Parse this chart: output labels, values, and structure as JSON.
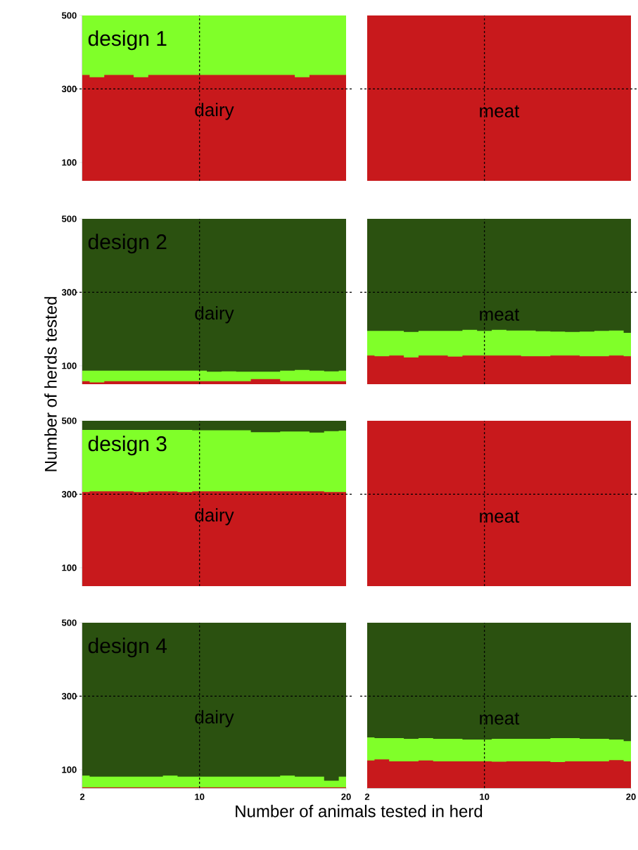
{
  "chart_data": [
    {
      "type": "area",
      "x": [
        2,
        3,
        4,
        5,
        6,
        7,
        8,
        9,
        10,
        11,
        12,
        13,
        14,
        15,
        16,
        17,
        18,
        19,
        20
      ],
      "xlim": [
        2,
        20
      ],
      "ylim": [
        50,
        500
      ],
      "xticks": [
        2,
        10,
        20
      ],
      "yticks": [
        100,
        300,
        500
      ],
      "tick_labels": "y",
      "annotations": [
        "design 1",
        "dairy"
      ],
      "ref_lines": [
        {
          "axis": "x",
          "value": 10,
          "color": "#000000",
          "line_style": "dashed"
        },
        {
          "axis": "y",
          "value": 300,
          "color": "#000000",
          "line_style": "dashed"
        }
      ],
      "bands": [
        {
          "axis": "y",
          "from": 50,
          "to": 500,
          "color": "#80ff29"
        }
      ],
      "series": [
        {
          "color": "#c8191c",
          "values": [
            338,
            332,
            338,
            338,
            332,
            338,
            338,
            338,
            338,
            338,
            338,
            338,
            338,
            338,
            338,
            332,
            338,
            338,
            338
          ]
        }
      ]
    },
    {
      "type": "area",
      "xlim": [
        2,
        20
      ],
      "ylim": [
        50,
        500
      ],
      "xticks": [
        2,
        10,
        20
      ],
      "yticks": [
        100,
        300,
        500
      ],
      "tick_labels": false,
      "annotations": [
        "meat"
      ],
      "ref_lines": [
        {
          "axis": "x",
          "value": 10,
          "color": "#000000",
          "line_style": "dashed"
        },
        {
          "axis": "y",
          "value": 300,
          "color": "#000000",
          "line_style": "dashed"
        }
      ],
      "bands": [
        {
          "axis": "y",
          "from": 50,
          "to": 500,
          "color": "#c8191c"
        }
      ]
    },
    {
      "type": "area",
      "x": [
        2,
        3,
        4,
        5,
        6,
        7,
        8,
        9,
        10,
        11,
        12,
        13,
        14,
        15,
        16,
        17,
        18,
        19,
        20
      ],
      "xlim": [
        2,
        20
      ],
      "ylim": [
        50,
        500
      ],
      "xticks": [
        2,
        10,
        20
      ],
      "yticks": [
        100,
        300,
        500
      ],
      "tick_labels": "y",
      "ylabel": "Number of herds tested",
      "annotations": [
        "design 2",
        "dairy"
      ],
      "ref_lines": [
        {
          "axis": "x",
          "value": 10,
          "color": "#000000",
          "line_style": "dashed"
        },
        {
          "axis": "y",
          "value": 300,
          "color": "#000000",
          "line_style": "dashed"
        }
      ],
      "bands": [
        {
          "axis": "y",
          "from": 50,
          "to": 500,
          "color": "#2b5110"
        }
      ],
      "series": [
        {
          "color": "#80ff29",
          "values": [
            87,
            87,
            87,
            87,
            87,
            87,
            87,
            87,
            87,
            84,
            85,
            84,
            84,
            84,
            87,
            89,
            87,
            85,
            87
          ]
        },
        {
          "color": "#c8191c",
          "values": [
            58,
            55,
            58,
            58,
            58,
            58,
            58,
            58,
            58,
            58,
            58,
            58,
            64,
            64,
            58,
            58,
            58,
            58,
            58
          ]
        }
      ]
    },
    {
      "type": "area",
      "x": [
        2,
        3,
        4,
        5,
        6,
        7,
        8,
        9,
        10,
        11,
        12,
        13,
        14,
        15,
        16,
        17,
        18,
        19,
        20
      ],
      "xlim": [
        2,
        20
      ],
      "ylim": [
        50,
        500
      ],
      "xticks": [
        2,
        10,
        20
      ],
      "yticks": [
        100,
        300,
        500
      ],
      "tick_labels": false,
      "annotations": [
        "meat"
      ],
      "ref_lines": [
        {
          "axis": "x",
          "value": 10,
          "color": "#000000",
          "line_style": "dashed"
        },
        {
          "axis": "y",
          "value": 300,
          "color": "#000000",
          "line_style": "dashed"
        }
      ],
      "bands": [
        {
          "axis": "y",
          "from": 50,
          "to": 500,
          "color": "#2b5110"
        }
      ],
      "series": [
        {
          "color": "#80ff29",
          "values": [
            195,
            195,
            195,
            192,
            195,
            195,
            195,
            198,
            195,
            198,
            196,
            196,
            194,
            193,
            192,
            193,
            195,
            196,
            190
          ]
        },
        {
          "color": "#c8191c",
          "values": [
            128,
            126,
            128,
            123,
            128,
            128,
            125,
            128,
            128,
            128,
            128,
            126,
            126,
            128,
            128,
            126,
            126,
            128,
            126
          ]
        }
      ]
    },
    {
      "type": "area",
      "x": [
        2,
        3,
        4,
        5,
        6,
        7,
        8,
        9,
        10,
        11,
        12,
        13,
        14,
        15,
        16,
        17,
        18,
        19,
        20
      ],
      "xlim": [
        2,
        20
      ],
      "ylim": [
        50,
        500
      ],
      "xticks": [
        2,
        10,
        20
      ],
      "yticks": [
        100,
        300,
        500
      ],
      "tick_labels": "y",
      "annotations": [
        "design 3",
        "dairy"
      ],
      "ref_lines": [
        {
          "axis": "x",
          "value": 10,
          "color": "#000000",
          "line_style": "dashed"
        },
        {
          "axis": "y",
          "value": 300,
          "color": "#000000",
          "line_style": "dashed"
        }
      ],
      "bands": [
        {
          "axis": "y",
          "from": 50,
          "to": 500,
          "color": "#2b5110"
        }
      ],
      "series": [
        {
          "color": "#80ff29",
          "values": [
            475,
            475,
            475,
            475,
            475,
            475,
            475,
            475,
            474,
            474,
            474,
            474,
            469,
            469,
            471,
            471,
            468,
            472,
            473
          ]
        },
        {
          "color": "#c8191c",
          "values": [
            306,
            308,
            308,
            308,
            306,
            308,
            308,
            306,
            308,
            308,
            308,
            308,
            308,
            308,
            308,
            308,
            308,
            306,
            306
          ]
        }
      ]
    },
    {
      "type": "area",
      "xlim": [
        2,
        20
      ],
      "ylim": [
        50,
        500
      ],
      "xticks": [
        2,
        10,
        20
      ],
      "yticks": [
        100,
        300,
        500
      ],
      "tick_labels": false,
      "annotations": [
        "meat"
      ],
      "ref_lines": [
        {
          "axis": "x",
          "value": 10,
          "color": "#000000",
          "line_style": "dashed"
        },
        {
          "axis": "y",
          "value": 300,
          "color": "#000000",
          "line_style": "dashed"
        }
      ],
      "bands": [
        {
          "axis": "y",
          "from": 50,
          "to": 500,
          "color": "#c8191c"
        }
      ]
    },
    {
      "type": "area",
      "x": [
        2,
        3,
        4,
        5,
        6,
        7,
        8,
        9,
        10,
        11,
        12,
        13,
        14,
        15,
        16,
        17,
        18,
        19,
        20
      ],
      "xlim": [
        2,
        20
      ],
      "ylim": [
        50,
        500
      ],
      "xticks": [
        2,
        10,
        20
      ],
      "yticks": [
        100,
        300,
        500
      ],
      "xlabel": "Number of animals tested in herd",
      "annotations": [
        "design 4",
        "dairy"
      ],
      "ref_lines": [
        {
          "axis": "x",
          "value": 10,
          "color": "#000000",
          "line_style": "dashed"
        },
        {
          "axis": "y",
          "value": 300,
          "color": "#000000",
          "line_style": "dashed"
        }
      ],
      "bands": [
        {
          "axis": "y",
          "from": 50,
          "to": 500,
          "color": "#2b5110"
        },
        {
          "axis": "y",
          "from": 50,
          "to": 52,
          "color": "#c8191c"
        }
      ],
      "series": [
        {
          "color": "#80ff29",
          "values": [
            84,
            81,
            81,
            81,
            81,
            81,
            84,
            81,
            81,
            81,
            81,
            81,
            81,
            81,
            84,
            81,
            81,
            70,
            81
          ]
        }
      ]
    },
    {
      "type": "area",
      "x": [
        2,
        3,
        4,
        5,
        6,
        7,
        8,
        9,
        10,
        11,
        12,
        13,
        14,
        15,
        16,
        17,
        18,
        19,
        20
      ],
      "xlim": [
        2,
        20
      ],
      "ylim": [
        50,
        500
      ],
      "xticks": [
        2,
        10,
        20
      ],
      "yticks": [
        100,
        300,
        500
      ],
      "tick_labels": "x",
      "annotations": [
        "meat"
      ],
      "ref_lines": [
        {
          "axis": "x",
          "value": 10,
          "color": "#000000",
          "line_style": "dashed"
        },
        {
          "axis": "y",
          "value": 300,
          "color": "#000000",
          "line_style": "dashed"
        }
      ],
      "bands": [
        {
          "axis": "y",
          "from": 50,
          "to": 500,
          "color": "#2b5110"
        }
      ],
      "series": [
        {
          "color": "#80ff29",
          "values": [
            188,
            186,
            186,
            184,
            186,
            184,
            184,
            182,
            182,
            184,
            184,
            184,
            184,
            186,
            186,
            184,
            184,
            182,
            178
          ]
        },
        {
          "color": "#c8191c",
          "values": [
            125,
            128,
            123,
            123,
            125,
            123,
            123,
            123,
            123,
            122,
            123,
            123,
            123,
            121,
            123,
            123,
            123,
            126,
            123
          ]
        }
      ]
    }
  ]
}
